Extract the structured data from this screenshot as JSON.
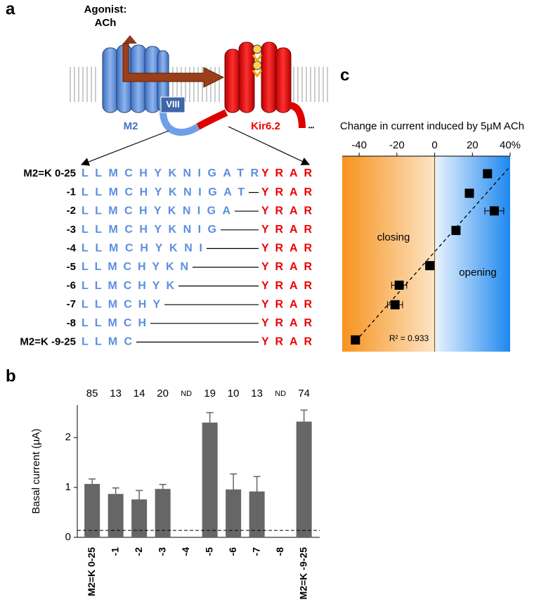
{
  "panel_a": {
    "label": "a",
    "agonist": "Agonist:",
    "ligand": "ACh",
    "receptor": "M2",
    "linker": "VIII",
    "channel": "Kir6.2",
    "ellipsis": "•••",
    "rows": [
      {
        "name": "M2=K 0-25",
        "m2": "LLMCHYKNIGATR",
        "kir": "YRAR"
      },
      {
        "name": "-1",
        "m2": "LLMCHYKNIGAT",
        "kir": "YRAR"
      },
      {
        "name": "-2",
        "m2": "LLMCHYKNIGA",
        "kir": "YRAR"
      },
      {
        "name": "-3",
        "m2": "LLMCHYKNIG",
        "kir": "YRAR"
      },
      {
        "name": "-4",
        "m2": "LLMCHYKNI",
        "kir": "YRAR"
      },
      {
        "name": "-5",
        "m2": "LLMCHYKN",
        "kir": "YRAR"
      },
      {
        "name": "-6",
        "m2": "LLMCHYK",
        "kir": "YRAR"
      },
      {
        "name": "-7",
        "m2": "LLMCHY",
        "kir": "YRAR"
      },
      {
        "name": "-8",
        "m2": "LLMCH",
        "kir": "YRAR"
      },
      {
        "name": "M2=K -9-25",
        "m2": "LLMC",
        "kir": "YRAR"
      }
    ]
  },
  "chart_data": [
    {
      "type": "bar",
      "panel": "b",
      "ylabel": "Basal current (µA)",
      "categories": [
        "M2=K 0-25",
        "-1",
        "-2",
        "-3",
        "-4",
        "-5",
        "-6",
        "-7",
        "-8",
        "M2=K -9-25"
      ],
      "values": [
        1.07,
        0.87,
        0.76,
        0.97,
        null,
        2.3,
        0.96,
        0.92,
        null,
        2.32
      ],
      "errors": [
        0.1,
        0.12,
        0.18,
        0.09,
        null,
        0.2,
        0.31,
        0.3,
        null,
        0.23
      ],
      "n_labels": [
        85,
        13,
        14,
        20,
        "ND",
        19,
        10,
        13,
        "ND",
        74
      ],
      "ylim": [
        0,
        2.65
      ],
      "yticks": [
        0,
        1,
        2
      ],
      "reference_line": 0.14,
      "color": "#666666"
    },
    {
      "type": "scatter",
      "panel": "c",
      "title": "Change in current induced by 5µM ACh",
      "x": [
        28,
        18.4,
        31.6,
        11.3,
        -2.6,
        -18.8,
        -21,
        -42
      ],
      "y": [
        9.1,
        8.1,
        7.2,
        6.2,
        4.4,
        3.4,
        2.4,
        0.6
      ],
      "xerr": [
        null,
        null,
        5,
        null,
        null,
        4,
        4,
        null
      ],
      "xlim": [
        -49,
        40
      ],
      "xticks": [
        -40,
        -20,
        0,
        20,
        {
          "value": 40,
          "label": "40%"
        }
      ],
      "ylim": [
        0,
        10
      ],
      "annotations": [
        "closing",
        "opening",
        "R² = 0.933"
      ],
      "color": "#000000"
    }
  ]
}
